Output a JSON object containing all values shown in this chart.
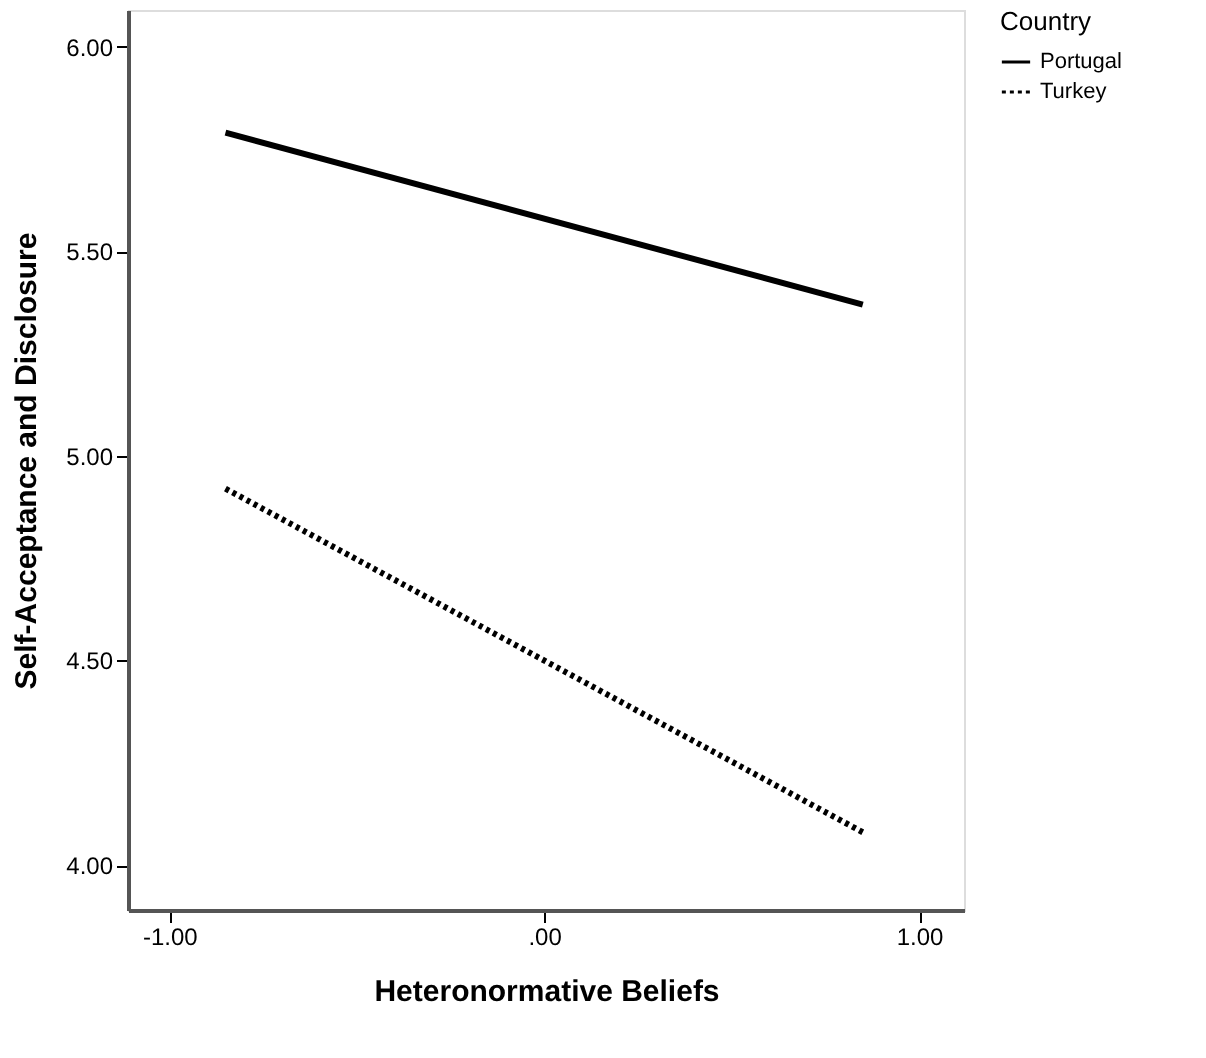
{
  "chart_data": {
    "type": "line",
    "xlabel": "Heteronormative Beliefs",
    "ylabel": "Self-Acceptance and Disclosure",
    "legend_title": "Country",
    "legend": "top right",
    "x": [
      -0.85,
      0.85
    ],
    "series": [
      {
        "name": "Portugal",
        "color": "#000000",
        "line_style": "solid",
        "values": [
          5.79,
          5.37
        ]
      },
      {
        "name": "Turkey",
        "color": "#000000",
        "line_style": "dotted",
        "values": [
          4.92,
          4.08
        ]
      }
    ],
    "xlim": [
      -1.11,
      1.12
    ],
    "xticks": [
      {
        "value": -1,
        "label": "-1.00"
      },
      {
        "value": 0,
        "label": ".00"
      },
      {
        "value": 1,
        "label": "1.00"
      }
    ],
    "ylim": [
      3.89,
      6.09
    ],
    "yticks": [
      {
        "value": 4,
        "label": "4.00"
      },
      {
        "value": 4.5,
        "label": "4.50"
      },
      {
        "value": 5,
        "label": "5.00"
      },
      {
        "value": 5.5,
        "label": "5.50"
      },
      {
        "value": 6,
        "label": "6.00"
      }
    ],
    "grid": false
  }
}
